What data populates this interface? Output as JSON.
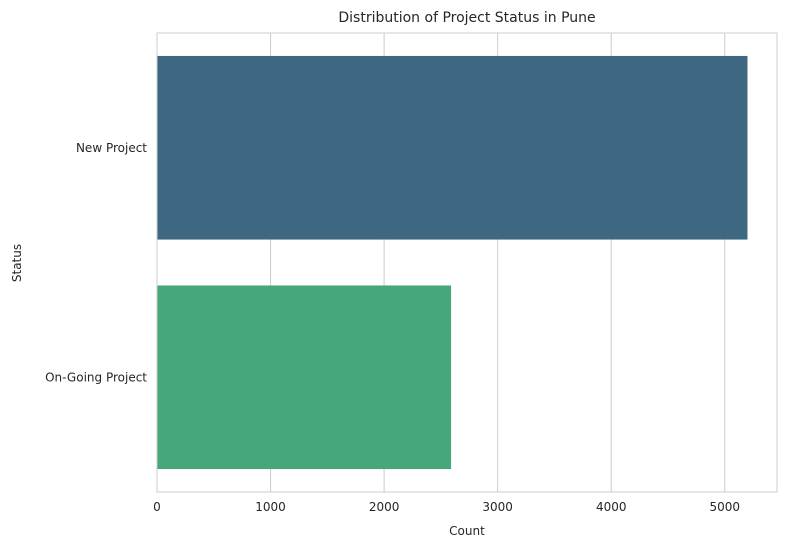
{
  "chart_data": {
    "type": "bar",
    "orientation": "horizontal",
    "title": "Distribution of Project Status in Pune",
    "xlabel": "Count",
    "ylabel": "Status",
    "categories": [
      "New Project",
      "On-Going Project"
    ],
    "values": [
      5200,
      2590
    ],
    "colors": [
      "#3e6782",
      "#46a87a"
    ],
    "xlim": [
      0,
      5460
    ],
    "xticks": [
      0,
      1000,
      2000,
      3000,
      4000,
      5000
    ],
    "grid": true,
    "legend": "none"
  }
}
